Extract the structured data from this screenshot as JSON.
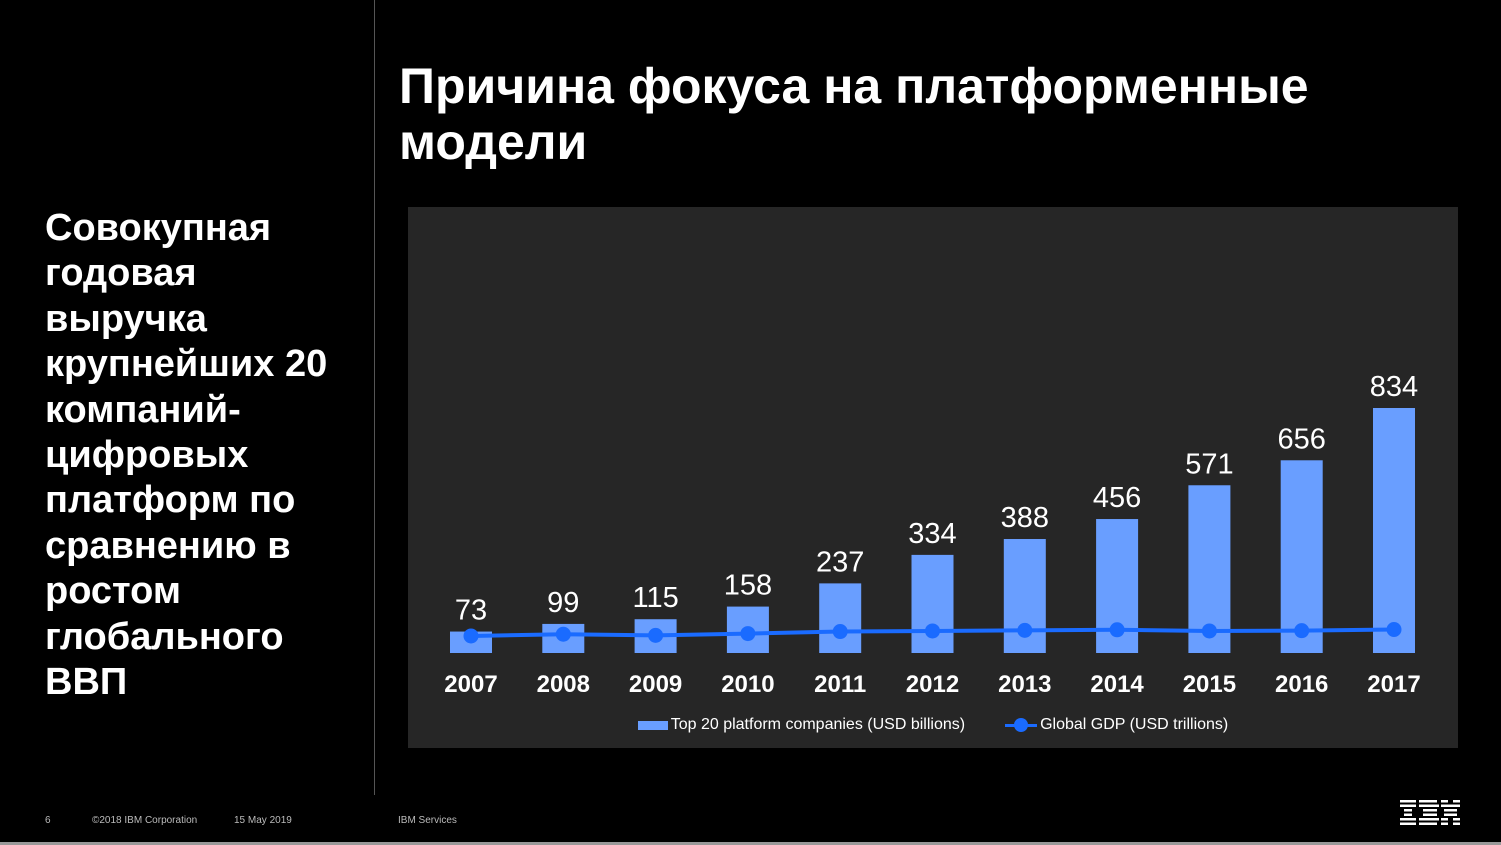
{
  "title": "Причина фокуса на платформенные модели",
  "side_text": "Совокупная годовая выручка крупнейших 20 компаний-цифровых платформ по сравнению в ростом глобального ВВП",
  "footer": {
    "page": "6",
    "copyright": "©2018 IBM Corporation",
    "date": "15 May 2019",
    "unit": "IBM Services",
    "logo": "IBM"
  },
  "colors": {
    "bar": "#699eff",
    "line": "#1a6bff",
    "panel": "#262626"
  },
  "chart_data": {
    "type": "bar",
    "categories": [
      "2007",
      "2008",
      "2009",
      "2010",
      "2011",
      "2012",
      "2013",
      "2014",
      "2015",
      "2016",
      "2017"
    ],
    "series": [
      {
        "name": "Top 20 platform companies (USD billions)",
        "type": "bar",
        "values": [
          73,
          99,
          115,
          158,
          237,
          334,
          388,
          456,
          571,
          656,
          834
        ]
      },
      {
        "name": "Global GDP (USD trillions)",
        "type": "line",
        "values": [
          58,
          64,
          60,
          66,
          73,
          75,
          77,
          79,
          75,
          76,
          80
        ]
      }
    ],
    "ylim": [
      0,
      834
    ],
    "grid": false,
    "legend": "bottom"
  }
}
